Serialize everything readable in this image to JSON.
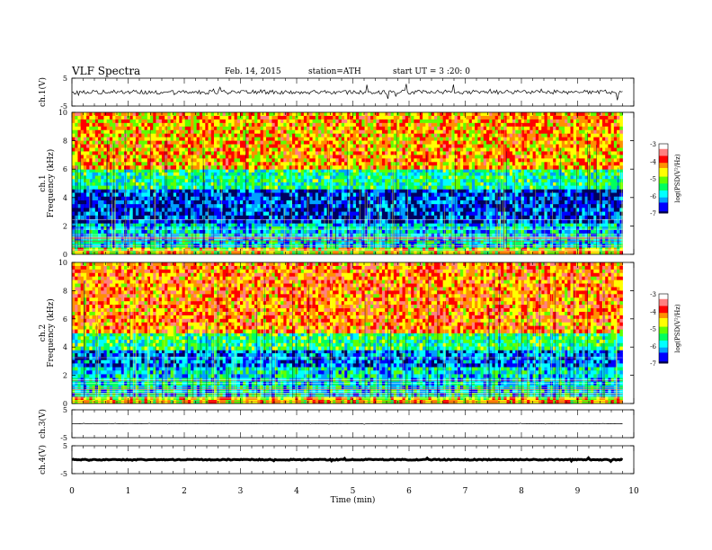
{
  "chart_data": {
    "type": "heatmap",
    "title": "VLF  Spectra",
    "date": "Feb. 14, 2015",
    "station": "station=ATH",
    "start": "start  UT  =   3  :20: 0",
    "x_axis": {
      "label": "Time  (min)",
      "range": [
        0,
        10
      ],
      "ticks": [
        "0",
        "1",
        "2",
        "3",
        "4",
        "5",
        "6",
        "7",
        "8",
        "9",
        "10"
      ],
      "data_end": 9.8
    },
    "panels": [
      {
        "id": "ch1-waveform",
        "kind": "waveform",
        "ylabel": "ch.1(V)",
        "ylim": [
          -5,
          5
        ],
        "yticks": [
          "5",
          "-5"
        ],
        "baseline": 0,
        "amplitude": 1.5
      },
      {
        "id": "ch1-spectrogram",
        "kind": "spectrogram",
        "ylabel_channel": "ch.1",
        "ylabel": "Frequency  (kHz)",
        "ylim": [
          0,
          10
        ],
        "yticks": [
          "0",
          "2",
          "4",
          "6",
          "8",
          "10"
        ],
        "bands": [
          {
            "f0": 0,
            "f1": 0.5,
            "level": -4.6
          },
          {
            "f0": 0.5,
            "f1": 2.2,
            "level": -5.9
          },
          {
            "f0": 2.2,
            "f1": 4.6,
            "level": -6.6
          },
          {
            "f0": 4.6,
            "f1": 6.0,
            "level": -5.5
          },
          {
            "f0": 6.0,
            "f1": 10,
            "level": -4.3
          }
        ],
        "colorbar": {
          "label": "log(PSD(V²/Hz)",
          "range": [
            -7,
            -3
          ],
          "ticks": [
            "-3",
            "-4",
            "-5",
            "-6",
            "-7"
          ]
        }
      },
      {
        "id": "ch2-spectrogram",
        "kind": "spectrogram",
        "ylabel_channel": "ch.2",
        "ylabel": "Frequency  (kHz)",
        "ylim": [
          0,
          10
        ],
        "yticks": [
          "0",
          "2",
          "4",
          "6",
          "8",
          "10"
        ],
        "bands": [
          {
            "f0": 0,
            "f1": 0.5,
            "level": -4.5
          },
          {
            "f0": 0.5,
            "f1": 2.6,
            "level": -5.8
          },
          {
            "f0": 2.6,
            "f1": 3.8,
            "level": -6.3
          },
          {
            "f0": 3.8,
            "f1": 5.0,
            "level": -5.4
          },
          {
            "f0": 5.0,
            "f1": 10,
            "level": -4.1
          }
        ],
        "colorbar": {
          "label": "log(PSD(V²/Hz)",
          "range": [
            -7,
            -3
          ],
          "ticks": [
            "-3",
            "-4",
            "-5",
            "-6",
            "-7"
          ]
        }
      },
      {
        "id": "ch3-waveform",
        "kind": "waveform",
        "ylabel": "ch.3(V)",
        "ylim": [
          -5,
          5
        ],
        "yticks": [
          "5",
          "-5"
        ],
        "baseline": 0,
        "amplitude": 0.1
      },
      {
        "id": "ch4-waveform",
        "kind": "waveform",
        "ylabel": "ch.4(V)",
        "ylim": [
          -5,
          5
        ],
        "yticks": [
          "5",
          "-5"
        ],
        "baseline": 0,
        "amplitude": 0.35
      }
    ],
    "colors": {
      "colormap": [
        "#000060",
        "#0000ff",
        "#00a0ff",
        "#00ffff",
        "#00ff60",
        "#60ff00",
        "#ffff00",
        "#ff9000",
        "#ff0000",
        "#ff8080",
        "#ffffff"
      ]
    }
  }
}
